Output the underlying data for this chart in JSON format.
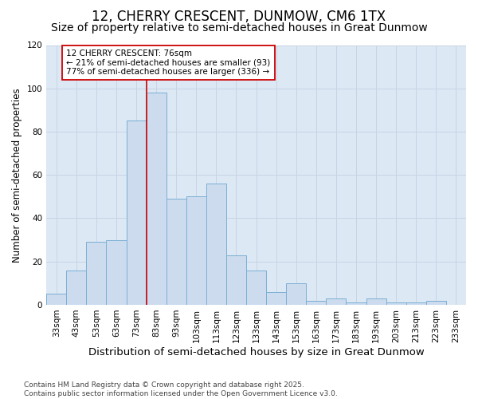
{
  "title": "12, CHERRY CRESCENT, DUNMOW, CM6 1TX",
  "subtitle": "Size of property relative to semi-detached houses in Great Dunmow",
  "xlabel": "Distribution of semi-detached houses by size in Great Dunmow",
  "ylabel": "Number of semi-detached properties",
  "footer_line1": "Contains HM Land Registry data © Crown copyright and database right 2025.",
  "footer_line2": "Contains public sector information licensed under the Open Government Licence v3.0.",
  "categories": [
    "33sqm",
    "43sqm",
    "53sqm",
    "63sqm",
    "73sqm",
    "83sqm",
    "93sqm",
    "103sqm",
    "113sqm",
    "123sqm",
    "133sqm",
    "143sqm",
    "153sqm",
    "163sqm",
    "173sqm",
    "183sqm",
    "193sqm",
    "203sqm",
    "213sqm",
    "223sqm",
    "233sqm"
  ],
  "values": [
    5,
    16,
    29,
    30,
    85,
    98,
    49,
    50,
    56,
    23,
    16,
    6,
    10,
    2,
    3,
    1,
    3,
    1,
    1,
    2,
    0
  ],
  "bar_color": "#ccdcee",
  "bar_edge_color": "#7bafd4",
  "grid_color": "#c8d4e4",
  "plot_bg_color": "#dce8f4",
  "fig_bg_color": "#ffffff",
  "vline_x": 4.5,
  "vline_color": "#cc0000",
  "annotation_text": "12 CHERRY CRESCENT: 76sqm\n← 21% of semi-detached houses are smaller (93)\n77% of semi-detached houses are larger (336) →",
  "ylim": [
    0,
    120
  ],
  "yticks": [
    0,
    20,
    40,
    60,
    80,
    100,
    120
  ],
  "title_fontsize": 12,
  "subtitle_fontsize": 10,
  "xlabel_fontsize": 9.5,
  "ylabel_fontsize": 8.5,
  "tick_fontsize": 7.5,
  "footer_fontsize": 6.5,
  "annot_fontsize": 7.5
}
